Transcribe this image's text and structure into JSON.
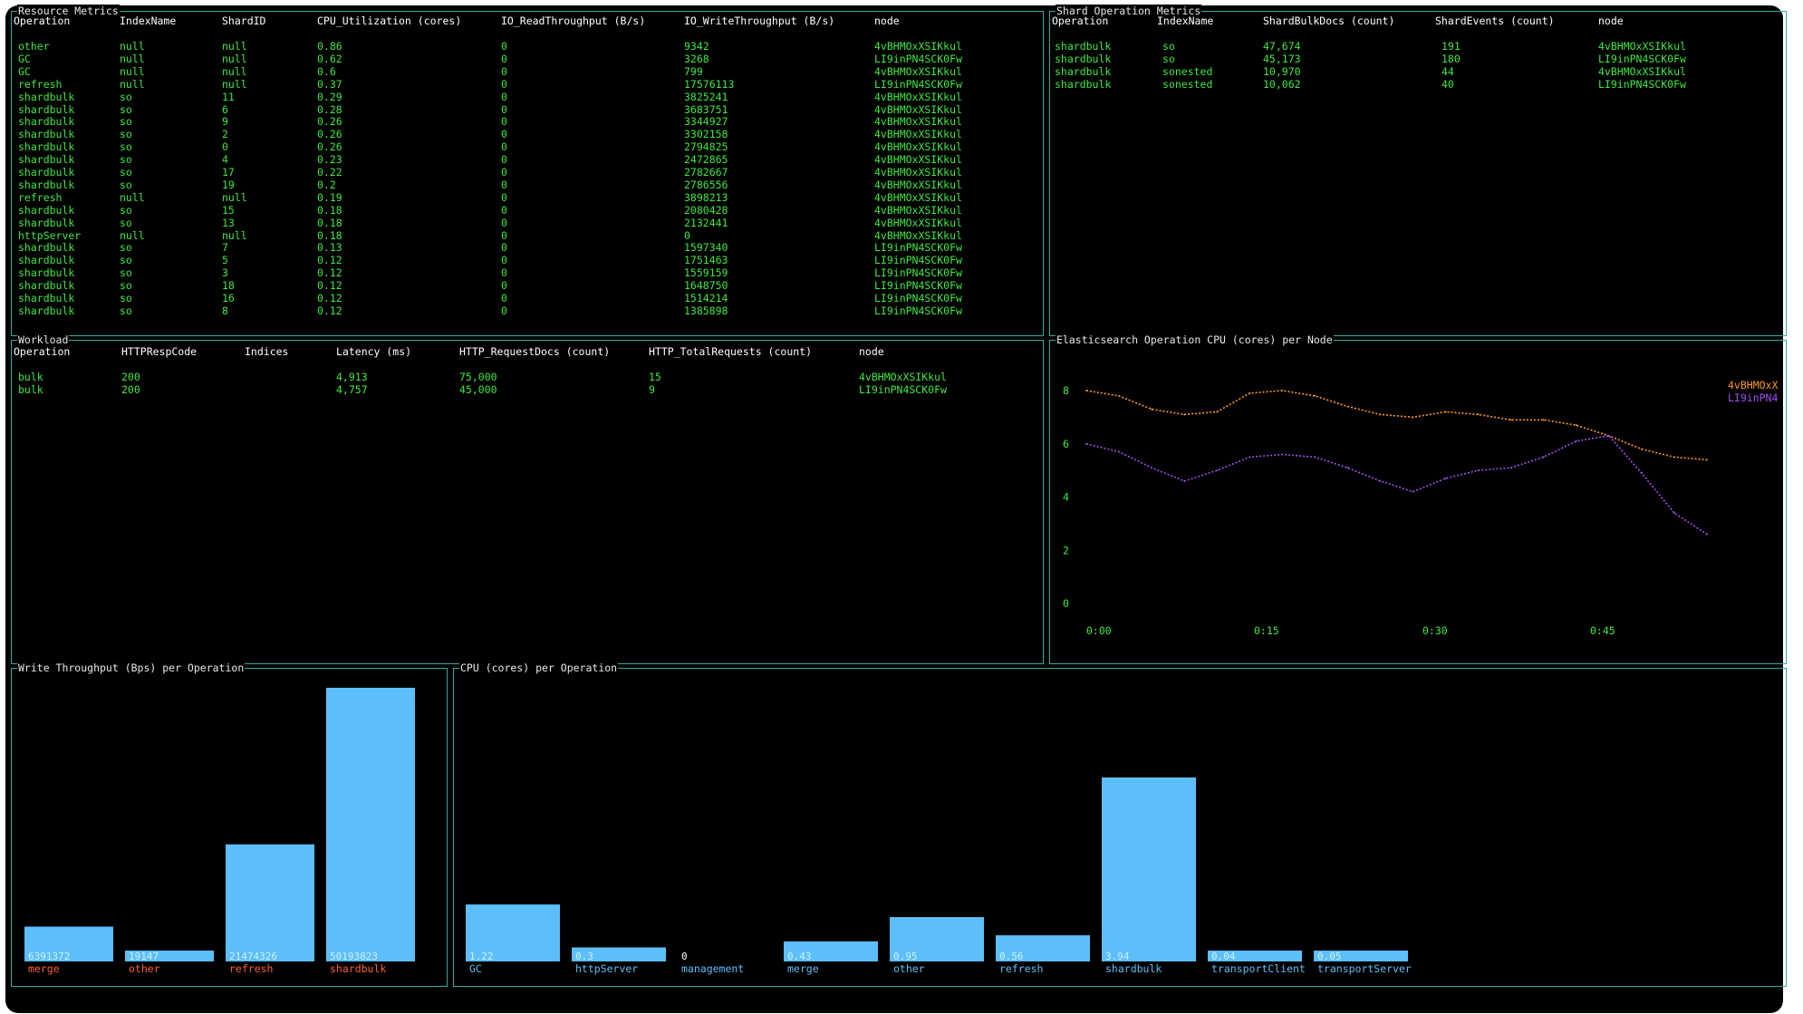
{
  "colors": {
    "bg": "#000000",
    "border": "#3aa9a0",
    "title": "#e8e8e8",
    "header": "#ffffff",
    "row": "#3ee83e",
    "bar": "#5cbff9",
    "bar_value": "#cfefff",
    "label_red": "#ff5f2e",
    "label_blue": "#5cbff9",
    "series_orange": "#ff9a1a",
    "series_purple": "#a44ef0",
    "axis": "#3ee83e"
  },
  "resource": {
    "title": "Resource Metrics",
    "columns": [
      "Operation",
      "IndexName",
      "ShardID",
      "CPU_Utilization (cores)",
      "IO_ReadThroughput (B/s)",
      "IO_WriteThroughput (B/s)",
      "node"
    ],
    "rows": [
      [
        "other",
        "null",
        "null",
        "0.86",
        "0",
        "9342",
        "4vBHMOxXSIKkul"
      ],
      [
        "GC",
        "null",
        "null",
        "0.62",
        "0",
        "3268",
        "LI9inPN4SCK0Fw"
      ],
      [
        "GC",
        "null",
        "null",
        "0.6",
        "0",
        "799",
        "4vBHMOxXSIKkul"
      ],
      [
        "refresh",
        "null",
        "null",
        "0.37",
        "0",
        "17576113",
        "LI9inPN4SCK0Fw"
      ],
      [
        "shardbulk",
        "so",
        "11",
        "0.29",
        "0",
        "3825241",
        "4vBHMOxXSIKkul"
      ],
      [
        "shardbulk",
        "so",
        "6",
        "0.28",
        "0",
        "3683751",
        "4vBHMOxXSIKkul"
      ],
      [
        "shardbulk",
        "so",
        "9",
        "0.26",
        "0",
        "3344927",
        "4vBHMOxXSIKkul"
      ],
      [
        "shardbulk",
        "so",
        "2",
        "0.26",
        "0",
        "3302158",
        "4vBHMOxXSIKkul"
      ],
      [
        "shardbulk",
        "so",
        "0",
        "0.26",
        "0",
        "2794825",
        "4vBHMOxXSIKkul"
      ],
      [
        "shardbulk",
        "so",
        "4",
        "0.23",
        "0",
        "2472865",
        "4vBHMOxXSIKkul"
      ],
      [
        "shardbulk",
        "so",
        "17",
        "0.22",
        "0",
        "2782667",
        "4vBHMOxXSIKkul"
      ],
      [
        "shardbulk",
        "so",
        "19",
        "0.2",
        "0",
        "2786556",
        "4vBHMOxXSIKkul"
      ],
      [
        "refresh",
        "null",
        "null",
        "0.19",
        "0",
        "3898213",
        "4vBHMOxXSIKkul"
      ],
      [
        "shardbulk",
        "so",
        "15",
        "0.18",
        "0",
        "2080428",
        "4vBHMOxXSIKkul"
      ],
      [
        "shardbulk",
        "so",
        "13",
        "0.18",
        "0",
        "2132441",
        "4vBHMOxXSIKkul"
      ],
      [
        "httpServer",
        "null",
        "null",
        "0.18",
        "0",
        "0",
        "4vBHMOxXSIKkul"
      ],
      [
        "shardbulk",
        "so",
        "7",
        "0.13",
        "0",
        "1597340",
        "LI9inPN4SCK0Fw"
      ],
      [
        "shardbulk",
        "so",
        "5",
        "0.12",
        "0",
        "1751463",
        "LI9inPN4SCK0Fw"
      ],
      [
        "shardbulk",
        "so",
        "3",
        "0.12",
        "0",
        "1559159",
        "LI9inPN4SCK0Fw"
      ],
      [
        "shardbulk",
        "so",
        "18",
        "0.12",
        "0",
        "1648750",
        "LI9inPN4SCK0Fw"
      ],
      [
        "shardbulk",
        "so",
        "16",
        "0.12",
        "0",
        "1514214",
        "LI9inPN4SCK0Fw"
      ],
      [
        "shardbulk",
        "so",
        "8",
        "0.12",
        "0",
        "1385898",
        "LI9inPN4SCK0Fw"
      ]
    ]
  },
  "shard": {
    "title": "Shard Operation Metrics",
    "columns": [
      "Operation",
      "IndexName",
      "ShardBulkDocs (count)",
      "ShardEvents (count)",
      "node"
    ],
    "rows": [
      [
        "shardbulk",
        "so",
        "47,674",
        "191",
        "4vBHMOxXSIKkul"
      ],
      [
        "shardbulk",
        "so",
        "45,173",
        "180",
        "LI9inPN4SCK0Fw"
      ],
      [
        "shardbulk",
        "sonested",
        "10,970",
        "44",
        "4vBHMOxXSIKkul"
      ],
      [
        "shardbulk",
        "sonested",
        "10,062",
        "40",
        "LI9inPN4SCK0Fw"
      ]
    ]
  },
  "workload": {
    "title": "Workload",
    "columns": [
      "Operation",
      "HTTPRespCode",
      "Indices",
      "Latency (ms)",
      "HTTP_RequestDocs (count)",
      "HTTP_TotalRequests (count)",
      "node"
    ],
    "rows": [
      [
        "bulk",
        "200",
        "",
        "4,913",
        "75,000",
        "15",
        "4vBHMOxXSIKkul"
      ],
      [
        "bulk",
        "200",
        "",
        "4,757",
        "45,000",
        "9",
        "LI9inPN4SCK0Fw"
      ]
    ]
  },
  "line_panel": {
    "title": "Elasticsearch Operation CPU (cores) per Node"
  },
  "write_panel": {
    "title": "Write Throughput (Bps) per Operation"
  },
  "cpu_panel": {
    "title": "CPU (cores) per Operation"
  },
  "chart_data": [
    {
      "type": "line",
      "title": "Elasticsearch Operation CPU (cores) per Node",
      "x": [
        "0:00",
        "0:03",
        "0:06",
        "0:09",
        "0:12",
        "0:15",
        "0:18",
        "0:21",
        "0:24",
        "0:27",
        "0:30",
        "0:33",
        "0:36",
        "0:39",
        "0:42",
        "0:45",
        "0:48",
        "0:51",
        "0:54",
        "0:57"
      ],
      "x_ticks": [
        "0:00",
        "0:15",
        "0:30",
        "0:45"
      ],
      "y_ticks": [
        "0",
        "2",
        "4",
        "6",
        "8"
      ],
      "ylim": [
        0,
        8
      ],
      "series": [
        {
          "name": "4vBHMOxX",
          "color": "#ff9a1a",
          "values": [
            8.0,
            7.8,
            7.3,
            7.1,
            7.2,
            7.9,
            8.0,
            7.8,
            7.4,
            7.1,
            7.0,
            7.2,
            7.1,
            6.9,
            6.9,
            6.7,
            6.3,
            5.8,
            5.5,
            5.4
          ]
        },
        {
          "name": "LI9inPN4",
          "color": "#a44ef0",
          "values": [
            6.0,
            5.7,
            5.1,
            4.6,
            5.0,
            5.5,
            5.6,
            5.5,
            5.1,
            4.6,
            4.2,
            4.7,
            5.0,
            5.1,
            5.5,
            6.1,
            6.3,
            4.9,
            3.4,
            2.6
          ]
        }
      ],
      "legend": "top-right",
      "grid": false
    },
    {
      "type": "bar",
      "title": "Write Throughput (Bps) per Operation",
      "categories": [
        "merge",
        "other",
        "refresh",
        "shardbulk"
      ],
      "values": [
        6391372,
        19147,
        21474326,
        50193823
      ],
      "labels": [
        "6391372",
        "19147",
        "21474326",
        "50193823"
      ]
    },
    {
      "type": "bar",
      "title": "CPU (cores) per Operation",
      "categories": [
        "GC",
        "httpServer",
        "management",
        "merge",
        "other",
        "refresh",
        "shardbulk",
        "transportClient",
        "transportServer"
      ],
      "values": [
        1.22,
        0.3,
        0,
        0.43,
        0.95,
        0.56,
        3.94,
        0.04,
        0.05
      ],
      "labels": [
        "1.22",
        "0.3",
        "0",
        "0.43",
        "0.95",
        "0.56",
        "3.94",
        "0.04",
        "0.05"
      ]
    }
  ]
}
